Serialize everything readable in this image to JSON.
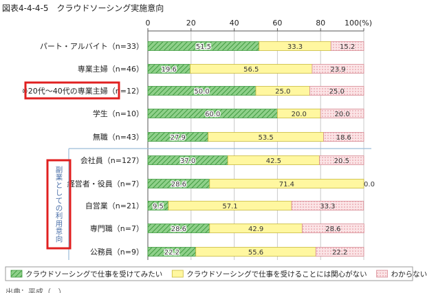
{
  "page": {
    "title": "図表4-4-4-5　クラウドソーシング実施意向"
  },
  "colors": {
    "want": "#6cc06c",
    "interest": "#fff7a0",
    "unknown": "#f3c4c8",
    "highlight": "#e02020",
    "divider": "#9bbcd8"
  },
  "group_label": "副業としての利用意向",
  "footnote": "出典：平成（...）",
  "chart_data": {
    "type": "bar",
    "orientation": "horizontal",
    "stacked": true,
    "xlim": [
      0,
      100
    ],
    "xticks": [
      "0",
      "20",
      "40",
      "60",
      "80",
      "100"
    ],
    "xunit": "(%)",
    "categories": [
      "パート・アルバイト（n=33）",
      "専業主婦（n=46）",
      "※20代～40代の専業主婦（n=12）",
      "学生（n=10）",
      "無職（n=43）",
      "会社員（n=127）",
      "経営者・役員（n=7）",
      "自営業（n=21）",
      "専門職（n=7）",
      "公務員（n=9）"
    ],
    "highlighted_category": "※20代～40代の専業主婦（n=12）",
    "series": [
      {
        "name": "クラウドソーシングで仕事を受けてみたい",
        "values": [
          51.5,
          19.6,
          50.0,
          60.0,
          27.9,
          37.0,
          28.6,
          9.5,
          28.6,
          22.2
        ]
      },
      {
        "name": "クラウドソーシングで仕事を受けることには関心がない",
        "values": [
          33.3,
          56.5,
          25.0,
          20.0,
          53.5,
          42.5,
          71.4,
          57.1,
          42.9,
          55.6
        ]
      },
      {
        "name": "わからない",
        "values": [
          15.2,
          23.9,
          25.0,
          20.0,
          18.6,
          20.5,
          0.0,
          33.3,
          28.6,
          22.2
        ]
      }
    ],
    "legend_position": "bottom"
  }
}
